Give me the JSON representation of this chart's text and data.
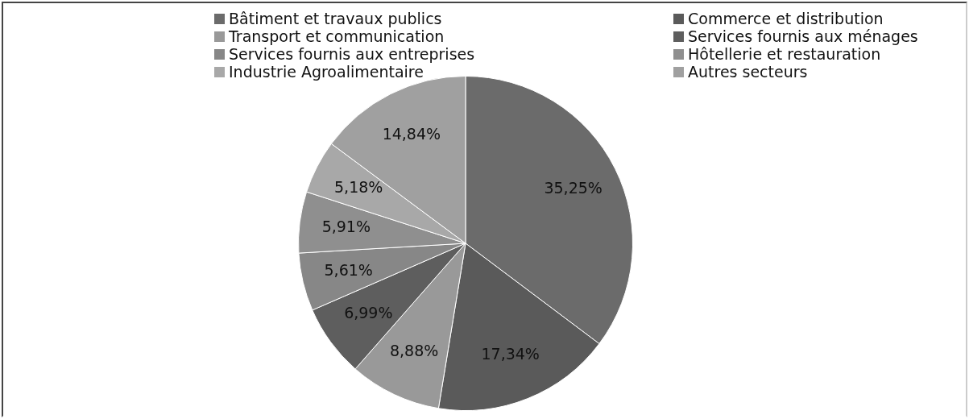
{
  "chart_data": {
    "type": "pie",
    "categories": [
      "Bâtiment et travaux publics",
      "Commerce et distribution",
      "Transport et communication",
      "Services fournis aux ménages",
      "Services fournis aux entreprises",
      "Hôtellerie et restauration",
      "Industrie Agroalimentaire",
      "Autres secteurs"
    ],
    "values": [
      35.25,
      17.34,
      8.88,
      6.99,
      5.61,
      5.91,
      5.18,
      14.84
    ],
    "value_labels": [
      "35,25%",
      "17,34%",
      "8,88%",
      "6,99%",
      "5,61%",
      "5,91%",
      "5,18%",
      "14,84%"
    ],
    "colors": [
      "#6b6b6b",
      "#5a5a5a",
      "#999999",
      "#5e5e5e",
      "#878787",
      "#8f8f8f",
      "#a8a8a8",
      "#a0a0a0"
    ],
    "legend": "top"
  }
}
